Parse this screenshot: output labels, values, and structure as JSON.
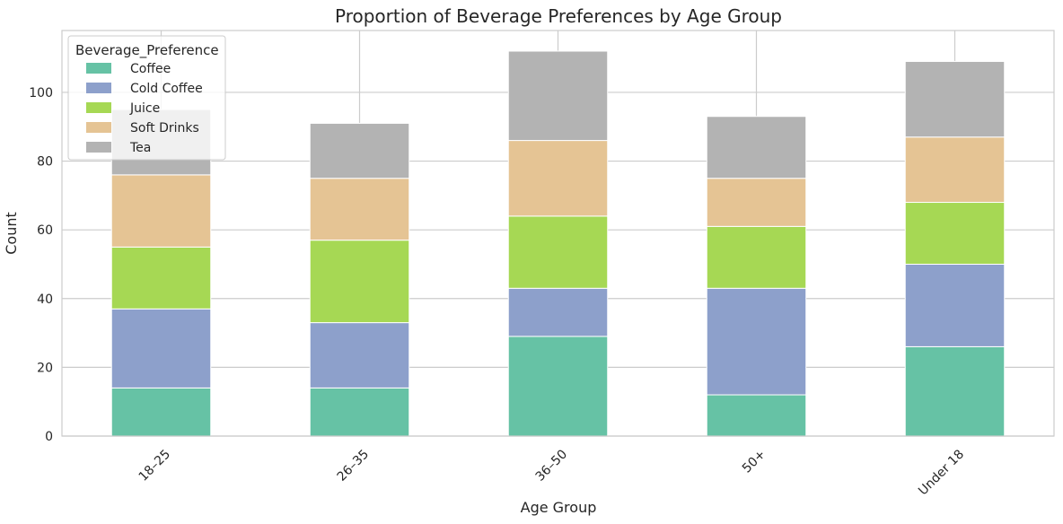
{
  "chart_data": {
    "type": "bar",
    "stacked": true,
    "title": "Proportion of Beverage Preferences by Age Group",
    "xlabel": "Age Group",
    "ylabel": "Count",
    "categories": [
      "18–25",
      "26–35",
      "36–50",
      "50+",
      "Under 18"
    ],
    "ylim": [
      0,
      118
    ],
    "yticks": [
      0,
      20,
      40,
      60,
      80,
      100
    ],
    "grid": true,
    "legend": {
      "title": "Beverage_Preference",
      "placement": "top-left"
    },
    "series": [
      {
        "name": "Coffee",
        "color": "#66c2a5",
        "values": [
          14,
          14,
          29,
          12,
          26
        ]
      },
      {
        "name": "Cold Coffee",
        "color": "#8da0cb",
        "values": [
          23,
          19,
          14,
          31,
          24
        ]
      },
      {
        "name": "Juice",
        "color": "#a6d854",
        "values": [
          18,
          24,
          21,
          18,
          18
        ]
      },
      {
        "name": "Soft Drinks",
        "color": "#e5c494",
        "values": [
          21,
          18,
          22,
          14,
          19
        ]
      },
      {
        "name": "Tea",
        "color": "#b3b3b3",
        "values": [
          19,
          16,
          26,
          18,
          22
        ]
      }
    ]
  }
}
